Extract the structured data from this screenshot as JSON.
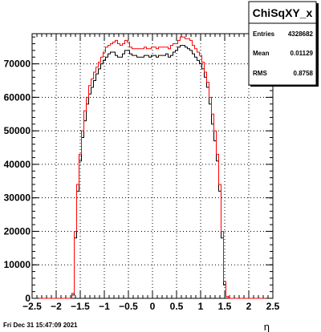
{
  "chart_data": {
    "type": "line",
    "title": "",
    "xlabel": "η",
    "ylabel": "",
    "xlim": [
      -2.5,
      2.5
    ],
    "ylim": [
      0,
      79000
    ],
    "grid": true,
    "x_ticks": [
      -2.5,
      -2,
      -1.5,
      -1,
      -0.5,
      0,
      0.5,
      1,
      1.5,
      2,
      2.5
    ],
    "x_tick_labels": [
      "−2.5",
      "−2",
      "−1.5",
      "−1",
      "−0.5",
      "0",
      "0.5",
      "1",
      "1.5",
      "2",
      "2.5"
    ],
    "y_ticks": [
      0,
      10000,
      20000,
      30000,
      40000,
      50000,
      60000,
      70000
    ],
    "y_tick_labels": [
      "0",
      "10000",
      "20000",
      "30000",
      "40000",
      "50000",
      "60000",
      "70000"
    ],
    "bin_edges": [
      -2.5,
      2.5
    ],
    "series": [
      {
        "color": "#000000",
        "bin_centers": [
          -1.7,
          -1.65,
          -1.6,
          -1.55,
          -1.5,
          -1.45,
          -1.4,
          -1.35,
          -1.3,
          -1.25,
          -1.2,
          -1.15,
          -1.1,
          -1.05,
          -1.0,
          -0.95,
          -0.9,
          -0.85,
          -0.8,
          -0.75,
          -0.7,
          -0.65,
          -0.6,
          -0.55,
          -0.5,
          -0.45,
          -0.4,
          -0.35,
          -0.3,
          -0.25,
          -0.2,
          -0.15,
          -0.1,
          -0.05,
          0.0,
          0.05,
          0.1,
          0.15,
          0.2,
          0.25,
          0.3,
          0.35,
          0.4,
          0.45,
          0.5,
          0.55,
          0.6,
          0.65,
          0.7,
          0.75,
          0.8,
          0.85,
          0.9,
          0.95,
          1.0,
          1.05,
          1.1,
          1.15,
          1.2,
          1.25,
          1.3,
          1.35,
          1.4,
          1.45,
          1.5,
          1.55,
          1.6,
          1.65,
          1.7
        ],
        "values": [
          0,
          1000,
          18000,
          32000,
          41000,
          48000,
          53000,
          58000,
          61000,
          63000,
          65000,
          67000,
          68500,
          70000,
          71000,
          72000,
          73000,
          73500,
          73500,
          72500,
          72000,
          72000,
          73000,
          74000,
          74000,
          73000,
          72500,
          72500,
          72000,
          72000,
          72000,
          72500,
          72500,
          72000,
          72500,
          72500,
          72000,
          72500,
          72500,
          72500,
          73000,
          72000,
          72500,
          73500,
          74000,
          75000,
          75500,
          75500,
          75000,
          74500,
          74000,
          73000,
          72000,
          71000,
          70000,
          68500,
          66000,
          63000,
          58000,
          52000,
          47000,
          41000,
          32000,
          18000,
          4000,
          500,
          0,
          0,
          0
        ]
      },
      {
        "color": "#ff0000",
        "bin_centers": [
          -1.7,
          -1.65,
          -1.6,
          -1.55,
          -1.5,
          -1.45,
          -1.4,
          -1.35,
          -1.3,
          -1.25,
          -1.2,
          -1.15,
          -1.1,
          -1.05,
          -1.0,
          -0.95,
          -0.9,
          -0.85,
          -0.8,
          -0.75,
          -0.7,
          -0.65,
          -0.6,
          -0.55,
          -0.5,
          -0.45,
          -0.4,
          -0.35,
          -0.3,
          -0.25,
          -0.2,
          -0.15,
          -0.1,
          -0.05,
          0.0,
          0.05,
          0.1,
          0.15,
          0.2,
          0.25,
          0.3,
          0.35,
          0.4,
          0.45,
          0.5,
          0.55,
          0.6,
          0.65,
          0.7,
          0.75,
          0.8,
          0.85,
          0.9,
          0.95,
          1.0,
          1.05,
          1.1,
          1.15,
          1.2,
          1.25,
          1.3,
          1.35,
          1.4,
          1.45,
          1.5,
          1.55,
          1.6,
          1.65,
          1.7
        ],
        "values": [
          0,
          1500,
          20000,
          34000,
          43000,
          50000,
          56000,
          60000,
          63500,
          65500,
          67500,
          69000,
          70500,
          72000,
          73500,
          75000,
          75500,
          76000,
          76500,
          77000,
          76000,
          75500,
          76000,
          77000,
          76500,
          75000,
          74500,
          74500,
          74500,
          74500,
          74500,
          75000,
          74500,
          74500,
          75000,
          75000,
          74500,
          75000,
          75000,
          75000,
          75000,
          74500,
          75500,
          76000,
          76000,
          77000,
          78000,
          78000,
          77500,
          77500,
          77000,
          75500,
          74500,
          73500,
          72500,
          70500,
          67500,
          64500,
          60000,
          55000,
          50000,
          43000,
          34000,
          20000,
          5000,
          500,
          0,
          0,
          0
        ]
      }
    ]
  },
  "stats_box": {
    "title": "ChiSqXY_x",
    "entries_label": "Entries",
    "entries_value": "4328682",
    "mean_label": "Mean",
    "mean_value": "0.01129",
    "rms_label": "RMS",
    "rms_value": "0.8758"
  },
  "footer": {
    "timestamp": "Fri Dec 31 15:47:09 2021"
  }
}
